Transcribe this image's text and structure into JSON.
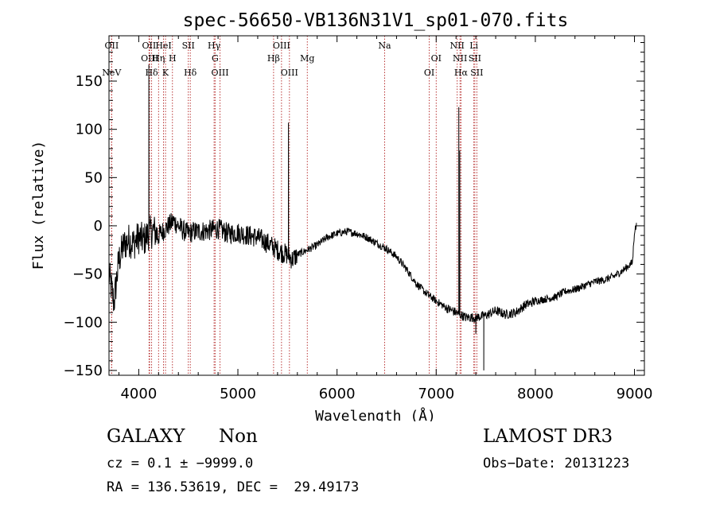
{
  "chart_data": {
    "type": "line",
    "title": "spec-56650-VB136N31V1_sp01-070.fits",
    "xlabel": "Wavelength (Å)",
    "ylabel": "Flux (relative)",
    "xlim": [
      3700,
      9100
    ],
    "ylim": [
      -155,
      197
    ],
    "x_ticks": [
      4000,
      5000,
      6000,
      7000,
      8000,
      9000
    ],
    "y_ticks": [
      -150,
      -100,
      -50,
      0,
      50,
      100,
      150
    ],
    "x_tick_labels": [
      "4000",
      "5000",
      "6000",
      "7000",
      "8000",
      "9000"
    ],
    "y_tick_labels": [
      "−150",
      "−100",
      "−50",
      "0",
      "50",
      "100",
      "150"
    ],
    "spectrum_anchors": [
      [
        3700,
        -50
      ],
      [
        3750,
        -80
      ],
      [
        3800,
        -35
      ],
      [
        3850,
        -20
      ],
      [
        3900,
        -15
      ],
      [
        3950,
        -18
      ],
      [
        4000,
        -12
      ],
      [
        4050,
        -15
      ],
      [
        4100,
        -8
      ],
      [
        4150,
        -5
      ],
      [
        4200,
        -10
      ],
      [
        4250,
        -5
      ],
      [
        4300,
        0
      ],
      [
        4350,
        5
      ],
      [
        4400,
        0
      ],
      [
        4450,
        -5
      ],
      [
        4500,
        -8
      ],
      [
        4550,
        -6
      ],
      [
        4600,
        -6
      ],
      [
        4700,
        -5
      ],
      [
        4800,
        -3
      ],
      [
        4900,
        -8
      ],
      [
        5000,
        -7
      ],
      [
        5100,
        -10
      ],
      [
        5200,
        -12
      ],
      [
        5300,
        -18
      ],
      [
        5400,
        -25
      ],
      [
        5450,
        -28
      ],
      [
        5500,
        -30
      ],
      [
        5550,
        -35
      ],
      [
        5600,
        -30
      ],
      [
        5700,
        -25
      ],
      [
        5800,
        -20
      ],
      [
        5900,
        -12
      ],
      [
        6000,
        -8
      ],
      [
        6100,
        -6
      ],
      [
        6200,
        -8
      ],
      [
        6300,
        -12
      ],
      [
        6400,
        -18
      ],
      [
        6500,
        -24
      ],
      [
        6600,
        -32
      ],
      [
        6700,
        -45
      ],
      [
        6800,
        -60
      ],
      [
        6900,
        -70
      ],
      [
        7000,
        -78
      ],
      [
        7100,
        -85
      ],
      [
        7200,
        -90
      ],
      [
        7300,
        -95
      ],
      [
        7400,
        -95
      ],
      [
        7500,
        -93
      ],
      [
        7600,
        -88
      ],
      [
        7700,
        -92
      ],
      [
        7800,
        -90
      ],
      [
        7900,
        -82
      ],
      [
        8000,
        -78
      ],
      [
        8100,
        -76
      ],
      [
        8200,
        -74
      ],
      [
        8300,
        -68
      ],
      [
        8400,
        -66
      ],
      [
        8500,
        -62
      ],
      [
        8600,
        -58
      ],
      [
        8700,
        -56
      ],
      [
        8800,
        -52
      ],
      [
        8900,
        -45
      ],
      [
        8980,
        -38
      ],
      [
        9000,
        -5
      ],
      [
        9020,
        0
      ]
    ],
    "emission_spikes": [
      {
        "x": 4102,
        "y": 167
      },
      {
        "x": 5510,
        "y": 107
      },
      {
        "x": 7228,
        "y": 123
      },
      {
        "x": 7238,
        "y": 78
      }
    ],
    "absorption_features": [
      {
        "x": 7480,
        "y": -150
      },
      {
        "x": 7400,
        "y": -112
      }
    ],
    "line_markers": [
      {
        "name": "NeV",
        "x": 3726,
        "row": 3
      },
      {
        "name": "OII",
        "x": 3727,
        "row": 1
      },
      {
        "name": "OII",
        "x": 4104,
        "row": 1
      },
      {
        "name": "OIII",
        "x": 4110,
        "row": 2
      },
      {
        "name": "Hδ",
        "x": 4130,
        "row": 3
      },
      {
        "name": "Hη",
        "x": 4200,
        "row": 2
      },
      {
        "name": "HeI",
        "x": 4250,
        "row": 1
      },
      {
        "name": "K",
        "x": 4270,
        "row": 3
      },
      {
        "name": "H",
        "x": 4340,
        "row": 2
      },
      {
        "name": "SII",
        "x": 4500,
        "row": 1
      },
      {
        "name": "Hδ",
        "x": 4520,
        "row": 3
      },
      {
        "name": "Hγ",
        "x": 4760,
        "row": 1
      },
      {
        "name": "G",
        "x": 4770,
        "row": 2
      },
      {
        "name": "OIII",
        "x": 4820,
        "row": 3
      },
      {
        "name": "Hβ",
        "x": 5360,
        "row": 2
      },
      {
        "name": "OIII",
        "x": 5440,
        "row": 1
      },
      {
        "name": "OIII",
        "x": 5520,
        "row": 3
      },
      {
        "name": "Mg",
        "x": 5700,
        "row": 2
      },
      {
        "name": "Na",
        "x": 6480,
        "row": 1
      },
      {
        "name": "OI",
        "x": 6930,
        "row": 3
      },
      {
        "name": "OI",
        "x": 7000,
        "row": 2
      },
      {
        "name": "NII",
        "x": 7212,
        "row": 1
      },
      {
        "name": "NII",
        "x": 7240,
        "row": 2
      },
      {
        "name": "Hα",
        "x": 7250,
        "row": 3
      },
      {
        "name": "Li",
        "x": 7380,
        "row": 1
      },
      {
        "name": "SII",
        "x": 7390,
        "row": 2
      },
      {
        "name": "SII",
        "x": 7410,
        "row": 3
      }
    ]
  },
  "footer": {
    "object_class": "GALAXY",
    "object_subclass": "Non",
    "survey": "LAMOST DR3",
    "cz_text": "cz = 0.1 ± −9999.0",
    "obs_date_text": "Obs−Date: 20131223",
    "radec_text": "RA = 136.53619, DEC =  29.49173"
  },
  "colors": {
    "spectrum": "#000000",
    "marker_line": "#b22222",
    "axis": "#000000",
    "background": "#ffffff"
  }
}
